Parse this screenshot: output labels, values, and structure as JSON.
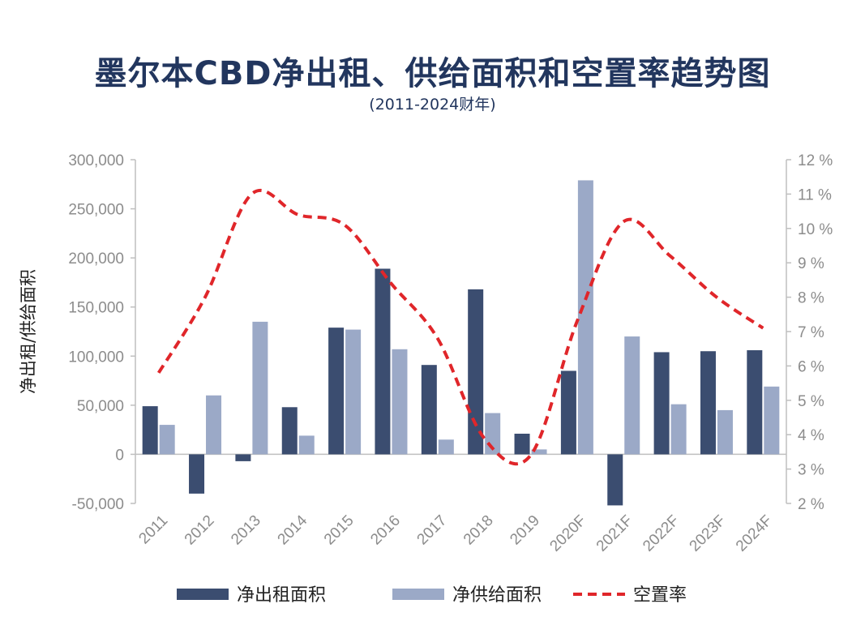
{
  "title": "墨尔本CBD净出租、供给面积和空置率趋势图",
  "subtitle": "(2011-2024财年)",
  "chart_data": {
    "type": "bar",
    "categories": [
      "2011",
      "2012",
      "2013",
      "2014",
      "2015",
      "2016",
      "2017",
      "2018",
      "2019",
      "2020F",
      "2021F",
      "2022F",
      "2023F",
      "2024F"
    ],
    "series": [
      {
        "name": "净出租面积",
        "kind": "bar",
        "axis": "left",
        "color": "#3b4d70",
        "values": [
          49000,
          -40000,
          -7000,
          48000,
          129000,
          189000,
          91000,
          168000,
          21000,
          85000,
          -52000,
          104000,
          105000,
          106000
        ]
      },
      {
        "name": "净供给面积",
        "kind": "bar",
        "axis": "left",
        "color": "#9ba9c7",
        "values": [
          30000,
          60000,
          135000,
          19000,
          127000,
          107000,
          15000,
          42000,
          5000,
          279000,
          120000,
          51000,
          45000,
          69000
        ]
      },
      {
        "name": "空置率",
        "kind": "line",
        "axis": "right",
        "color": "#e0262a",
        "dashed": true,
        "values": [
          5.8,
          8.0,
          11.0,
          10.4,
          10.1,
          8.4,
          6.8,
          3.9,
          3.4,
          7.3,
          10.2,
          9.2,
          8.0,
          7.1
        ]
      }
    ],
    "y_left": {
      "label": "净出租/供给面积",
      "min": -50000,
      "max": 300000,
      "ticks": [
        "-50,000",
        "0",
        "50,000",
        "100,000",
        "150,000",
        "200,000",
        "250,000",
        "300,000"
      ]
    },
    "y_right": {
      "min": 2,
      "max": 12,
      "ticks": [
        "2 %",
        "3 %",
        "4 %",
        "5 %",
        "6 %",
        "7 %",
        "8 %",
        "9 %",
        "10 %",
        "11 %",
        "12 %"
      ]
    },
    "legend": {
      "position": "bottom"
    },
    "grid": false
  }
}
